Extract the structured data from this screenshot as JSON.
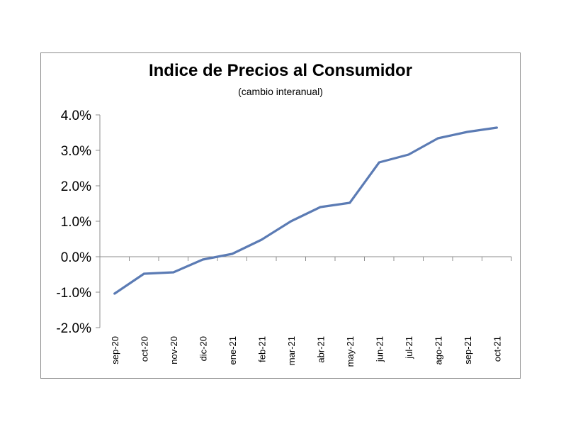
{
  "chart_data": {
    "type": "line",
    "title": "Indice de Precios al Consumidor",
    "subtitle": "(cambio interanual)",
    "xlabel": "",
    "ylabel": "",
    "categories": [
      "sep-20",
      "oct-20",
      "nov-20",
      "dic-20",
      "ene-21",
      "feb-21",
      "mar-21",
      "abr-21",
      "may-21",
      "jun-21",
      "jul-21",
      "ago-21",
      "sep-21",
      "oct-21"
    ],
    "series": [
      {
        "values": [
          -1.04,
          -0.48,
          -0.44,
          -0.08,
          0.08,
          0.48,
          1.0,
          1.4,
          1.52,
          2.66,
          2.88,
          3.34,
          3.52,
          3.64
        ]
      }
    ],
    "y_ticks": [
      "4.0%",
      "3.0%",
      "2.0%",
      "1.0%",
      "0.0%",
      "-1.0%",
      "-2.0%"
    ],
    "ylim": [
      -2.0,
      4.0
    ],
    "grid": false,
    "line_color": "#5b7bb4"
  }
}
